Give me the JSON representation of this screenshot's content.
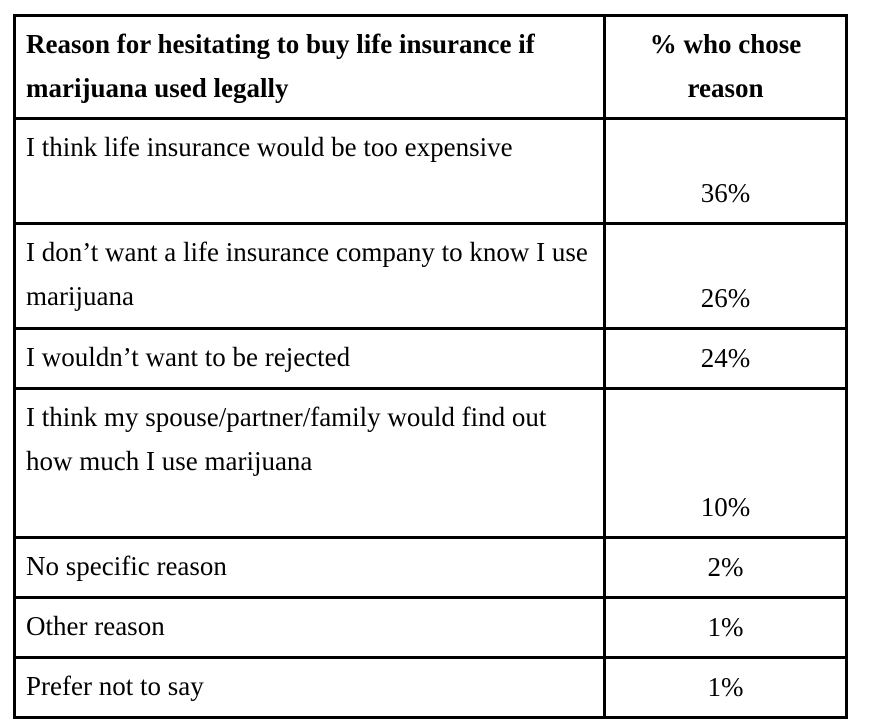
{
  "chart_data": {
    "type": "table",
    "title": "",
    "columns": [
      "Reason for hesitating to buy life insurance if marijuana used legally",
      "% who chose reason"
    ],
    "categories": [
      "I think life insurance would be too expensive",
      "I don’t want a life insurance company to know I use marijuana",
      "I wouldn’t want to be rejected",
      "I think my spouse/partner/family would find out how much I use marijuana",
      "No specific reason",
      "Other reason",
      "Prefer not to say"
    ],
    "values": [
      36,
      26,
      24,
      10,
      2,
      1,
      1
    ],
    "value_unit": "%"
  },
  "table": {
    "header": {
      "reason_label": "Reason for hesitating to buy life insurance if marijuana used legally",
      "value_label": "% who chose reason"
    },
    "rows": [
      {
        "reason": "I think life insurance would be too expensive",
        "value": "36%"
      },
      {
        "reason": "I don’t want a life insurance company to know I use marijuana",
        "value": "26%"
      },
      {
        "reason": "I wouldn’t want to be rejected",
        "value": "24%"
      },
      {
        "reason": "I think my spouse/partner/family would find out how much I use marijuana",
        "value": "10%"
      },
      {
        "reason": "No specific reason",
        "value": "2%"
      },
      {
        "reason": "Other reason",
        "value": "1%"
      },
      {
        "reason": "Prefer not to say",
        "value": "1%"
      }
    ],
    "colors": {
      "border": "#000000",
      "text": "#000000",
      "background": "#ffffff"
    }
  }
}
